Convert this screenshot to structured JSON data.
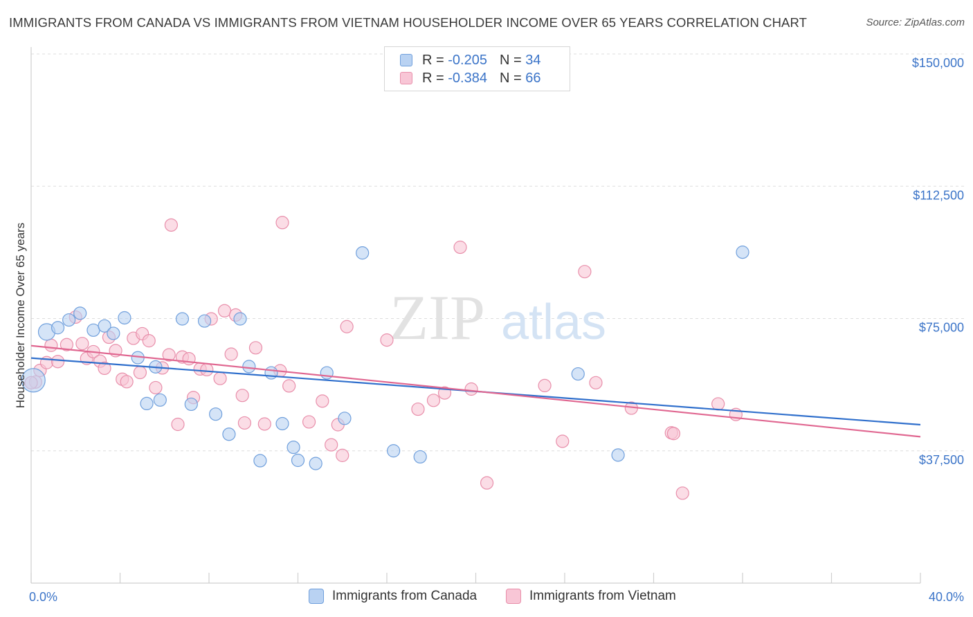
{
  "header": {
    "title": "IMMIGRANTS FROM CANADA VS IMMIGRANTS FROM VIETNAM HOUSEHOLDER INCOME OVER 65 YEARS CORRELATION CHART",
    "source": "Source: ZipAtlas.com"
  },
  "legend": {
    "canada": {
      "r_label": "R =",
      "r_value": "-0.205",
      "n_label": "N =",
      "n_value": "34"
    },
    "vietnam": {
      "r_label": "R =",
      "r_value": "-0.384",
      "n_label": "N =",
      "n_value": "66"
    }
  },
  "watermark": {
    "zip": "ZIP",
    "atlas": "atlas"
  },
  "colors": {
    "canada_fill": "#b9d2f2",
    "canada_stroke": "#6f9fdc",
    "canada_line": "#2f6fcc",
    "vietnam_fill": "#f8c6d6",
    "vietnam_stroke": "#e88eaa",
    "vietnam_line": "#e06690",
    "axis_label": "#3b74c8",
    "grid": "#dddddd"
  },
  "chart_data": {
    "type": "scatter",
    "title": "IMMIGRANTS FROM CANADA VS IMMIGRANTS FROM VIETNAM HOUSEHOLDER INCOME OVER 65 YEARS CORRELATION CHART",
    "xlabel": "",
    "ylabel": "Householder Income Over 65 years",
    "xlim": [
      0,
      40
    ],
    "ylim": [
      0,
      157500
    ],
    "x_tick_labels": [
      "0.0%",
      "40.0%"
    ],
    "y_ticks": [
      37500,
      75000,
      112500,
      150000
    ],
    "y_tick_labels": [
      "$37,500",
      "$75,000",
      "$112,500",
      "$150,000"
    ],
    "grid": true,
    "legend_position": "top-center",
    "series": [
      {
        "name": "Immigrants from Canada",
        "color": "#6f9fdc",
        "r": -0.205,
        "n": 34,
        "trend": {
          "x": [
            0,
            40
          ],
          "y": [
            63800,
            44900
          ]
        },
        "points": [
          {
            "x": 0.1,
            "y": 57500,
            "s": 3
          },
          {
            "x": 0.7,
            "y": 71200,
            "s": 2
          },
          {
            "x": 1.2,
            "y": 72400,
            "s": 1
          },
          {
            "x": 1.7,
            "y": 74600,
            "s": 1
          },
          {
            "x": 2.2,
            "y": 76500,
            "s": 1
          },
          {
            "x": 2.8,
            "y": 71700,
            "s": 1
          },
          {
            "x": 3.3,
            "y": 72900,
            "s": 1
          },
          {
            "x": 3.7,
            "y": 70800,
            "s": 1
          },
          {
            "x": 4.2,
            "y": 75200,
            "s": 1
          },
          {
            "x": 4.8,
            "y": 63900,
            "s": 1
          },
          {
            "x": 5.2,
            "y": 50900,
            "s": 1
          },
          {
            "x": 5.6,
            "y": 61300,
            "s": 1
          },
          {
            "x": 5.8,
            "y": 51900,
            "s": 1
          },
          {
            "x": 6.8,
            "y": 74900,
            "s": 1
          },
          {
            "x": 7.2,
            "y": 50700,
            "s": 1
          },
          {
            "x": 7.8,
            "y": 74300,
            "s": 1
          },
          {
            "x": 8.3,
            "y": 47900,
            "s": 1
          },
          {
            "x": 8.9,
            "y": 42200,
            "s": 1
          },
          {
            "x": 9.4,
            "y": 74900,
            "s": 1
          },
          {
            "x": 9.8,
            "y": 61400,
            "s": 1
          },
          {
            "x": 10.3,
            "y": 34700,
            "s": 1
          },
          {
            "x": 10.8,
            "y": 59600,
            "s": 1
          },
          {
            "x": 11.3,
            "y": 45200,
            "s": 1
          },
          {
            "x": 11.8,
            "y": 38500,
            "s": 1
          },
          {
            "x": 12.0,
            "y": 34800,
            "s": 1
          },
          {
            "x": 12.8,
            "y": 33900,
            "s": 1
          },
          {
            "x": 13.3,
            "y": 59600,
            "s": 1
          },
          {
            "x": 14.1,
            "y": 46700,
            "s": 1
          },
          {
            "x": 14.9,
            "y": 93600,
            "s": 1
          },
          {
            "x": 16.3,
            "y": 37500,
            "s": 1
          },
          {
            "x": 17.5,
            "y": 35800,
            "s": 1
          },
          {
            "x": 24.6,
            "y": 59300,
            "s": 1
          },
          {
            "x": 26.4,
            "y": 36300,
            "s": 1
          },
          {
            "x": 32.0,
            "y": 93800,
            "s": 1
          }
        ]
      },
      {
        "name": "Immigrants from Vietnam",
        "color": "#e88eaa",
        "r": -0.384,
        "n": 66,
        "trend": {
          "x": [
            0,
            40
          ],
          "y": [
            67300,
            41500
          ]
        },
        "points": [
          {
            "x": 0.2,
            "y": 57000,
            "s": 1
          },
          {
            "x": 0.4,
            "y": 60300,
            "s": 1
          },
          {
            "x": 0.7,
            "y": 62500,
            "s": 1
          },
          {
            "x": 0.9,
            "y": 67400,
            "s": 1
          },
          {
            "x": 1.2,
            "y": 62800,
            "s": 1
          },
          {
            "x": 1.6,
            "y": 67600,
            "s": 1
          },
          {
            "x": 2.0,
            "y": 75400,
            "s": 1
          },
          {
            "x": 2.3,
            "y": 67900,
            "s": 1
          },
          {
            "x": 2.5,
            "y": 63700,
            "s": 1
          },
          {
            "x": 2.8,
            "y": 65600,
            "s": 1
          },
          {
            "x": 3.1,
            "y": 62900,
            "s": 1
          },
          {
            "x": 3.3,
            "y": 60900,
            "s": 1
          },
          {
            "x": 3.5,
            "y": 69700,
            "s": 1
          },
          {
            "x": 3.8,
            "y": 65900,
            "s": 1
          },
          {
            "x": 4.1,
            "y": 57800,
            "s": 1
          },
          {
            "x": 4.3,
            "y": 57100,
            "s": 1
          },
          {
            "x": 4.6,
            "y": 69400,
            "s": 1
          },
          {
            "x": 4.9,
            "y": 59700,
            "s": 1
          },
          {
            "x": 5.0,
            "y": 70700,
            "s": 1
          },
          {
            "x": 5.3,
            "y": 68700,
            "s": 1
          },
          {
            "x": 5.6,
            "y": 55400,
            "s": 1
          },
          {
            "x": 5.9,
            "y": 61000,
            "s": 1
          },
          {
            "x": 6.2,
            "y": 64700,
            "s": 1
          },
          {
            "x": 6.3,
            "y": 101500,
            "s": 1
          },
          {
            "x": 6.6,
            "y": 45000,
            "s": 1
          },
          {
            "x": 6.8,
            "y": 64100,
            "s": 1
          },
          {
            "x": 7.1,
            "y": 63600,
            "s": 1
          },
          {
            "x": 7.3,
            "y": 52600,
            "s": 1
          },
          {
            "x": 7.6,
            "y": 60700,
            "s": 1
          },
          {
            "x": 7.9,
            "y": 60500,
            "s": 1
          },
          {
            "x": 8.1,
            "y": 74900,
            "s": 1
          },
          {
            "x": 8.5,
            "y": 58000,
            "s": 1
          },
          {
            "x": 8.7,
            "y": 77200,
            "s": 1
          },
          {
            "x": 9.0,
            "y": 64900,
            "s": 1
          },
          {
            "x": 9.2,
            "y": 76000,
            "s": 1
          },
          {
            "x": 9.5,
            "y": 53200,
            "s": 1
          },
          {
            "x": 9.6,
            "y": 45400,
            "s": 1
          },
          {
            "x": 10.1,
            "y": 66700,
            "s": 1
          },
          {
            "x": 10.5,
            "y": 45100,
            "s": 1
          },
          {
            "x": 11.3,
            "y": 102200,
            "s": 1
          },
          {
            "x": 11.2,
            "y": 60200,
            "s": 1
          },
          {
            "x": 11.6,
            "y": 55900,
            "s": 1
          },
          {
            "x": 12.5,
            "y": 45700,
            "s": 1
          },
          {
            "x": 13.1,
            "y": 51600,
            "s": 1
          },
          {
            "x": 13.5,
            "y": 39200,
            "s": 1
          },
          {
            "x": 13.8,
            "y": 44900,
            "s": 1
          },
          {
            "x": 14.0,
            "y": 36200,
            "s": 1
          },
          {
            "x": 14.2,
            "y": 72700,
            "s": 1
          },
          {
            "x": 16.0,
            "y": 68900,
            "s": 1
          },
          {
            "x": 17.4,
            "y": 49300,
            "s": 1
          },
          {
            "x": 18.1,
            "y": 51800,
            "s": 1
          },
          {
            "x": 18.6,
            "y": 53900,
            "s": 1
          },
          {
            "x": 19.3,
            "y": 95200,
            "s": 1
          },
          {
            "x": 19.8,
            "y": 55000,
            "s": 1
          },
          {
            "x": 20.5,
            "y": 28400,
            "s": 1
          },
          {
            "x": 23.1,
            "y": 56000,
            "s": 1
          },
          {
            "x": 23.9,
            "y": 40200,
            "s": 1
          },
          {
            "x": 24.9,
            "y": 88300,
            "s": 1
          },
          {
            "x": 25.4,
            "y": 56800,
            "s": 1
          },
          {
            "x": 27.0,
            "y": 49600,
            "s": 1
          },
          {
            "x": 28.8,
            "y": 42600,
            "s": 1
          },
          {
            "x": 28.9,
            "y": 42400,
            "s": 1
          },
          {
            "x": 29.3,
            "y": 25500,
            "s": 1
          },
          {
            "x": 30.9,
            "y": 50800,
            "s": 1
          },
          {
            "x": 31.7,
            "y": 47800,
            "s": 1
          },
          {
            "x": 0.0,
            "y": 56800,
            "s": 1
          }
        ]
      }
    ]
  }
}
